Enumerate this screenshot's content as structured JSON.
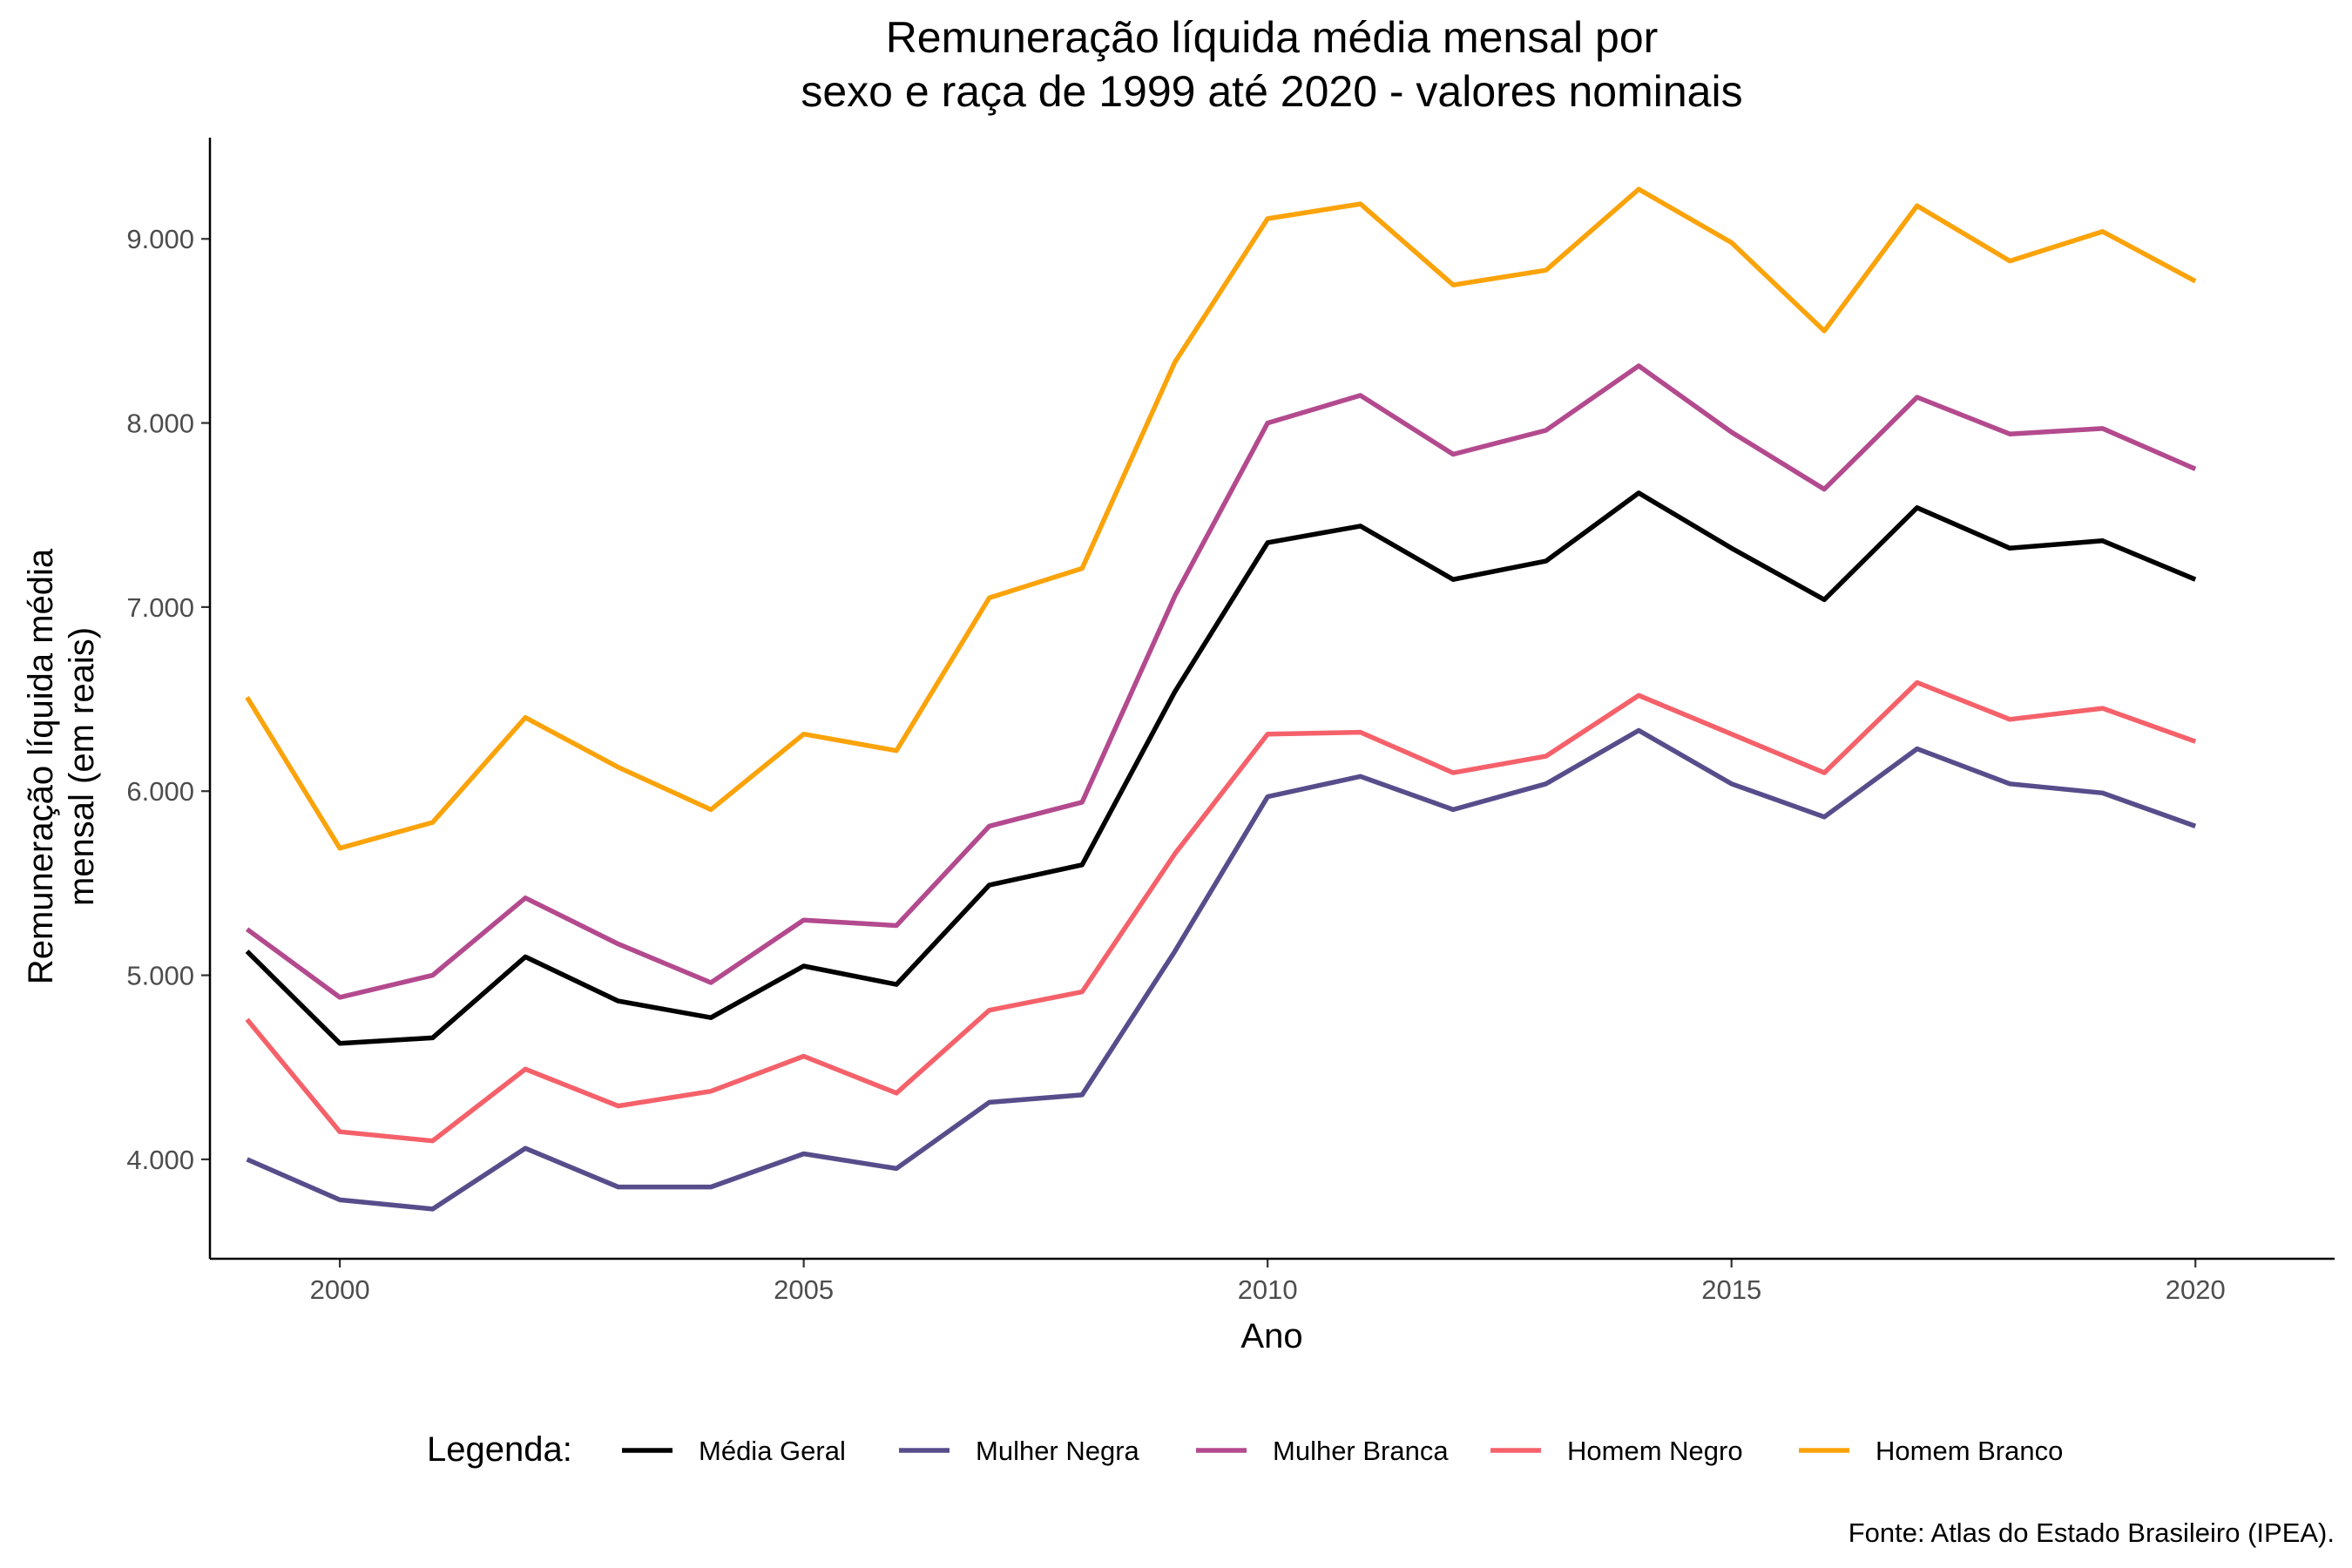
{
  "chart_data": {
    "type": "line",
    "title": [
      "Remuneração líquida média mensal por",
      "sexo e raça de 1999 até 2020 - valores nominais"
    ],
    "xlabel": "Ano",
    "ylabel": [
      "Remuneração líquida média",
      "mensal (em reais)"
    ],
    "xlim": [
      1998.6,
      2021.5
    ],
    "ylim": [
      3460,
      9550
    ],
    "x_ticks": [
      2000,
      2005,
      2010,
      2015,
      2020
    ],
    "x_tick_labels": [
      "2000",
      "2005",
      "2010",
      "2015",
      "2020"
    ],
    "y_ticks": [
      4000,
      5000,
      6000,
      7000,
      8000,
      9000
    ],
    "y_tick_labels": [
      "4.000",
      "5.000",
      "6.000",
      "7.000",
      "8.000",
      "9.000"
    ],
    "grid": false,
    "legend_title": "Legenda:",
    "legend_position": "bottom",
    "x": [
      1999,
      2000,
      2001,
      2002,
      2003,
      2004,
      2005,
      2006,
      2007,
      2008,
      2009,
      2010,
      2011,
      2012,
      2013,
      2014,
      2015,
      2016,
      2017,
      2018,
      2019,
      2020
    ],
    "series": [
      {
        "name": "Média Geral",
        "color": "#000000",
        "values": [
          5130,
          4630,
          4660,
          5100,
          4860,
          4770,
          5050,
          4950,
          5490,
          5600,
          6540,
          7350,
          7440,
          7150,
          7250,
          7620,
          7320,
          7040,
          7540,
          7320,
          7360,
          7150
        ]
      },
      {
        "name": "Mulher Negra",
        "color": "#574D8B",
        "values": [
          4000,
          3780,
          3730,
          4060,
          3850,
          3850,
          4030,
          3950,
          4310,
          4350,
          5130,
          5970,
          6080,
          5900,
          6040,
          6330,
          6040,
          5860,
          6230,
          6040,
          5990,
          5810
        ]
      },
      {
        "name": "Mulher Branca",
        "color": "#B34A8E",
        "values": [
          5250,
          4880,
          5000,
          5420,
          5170,
          4960,
          5300,
          5270,
          5810,
          5940,
          7060,
          8000,
          8150,
          7830,
          7960,
          8310,
          7950,
          7640,
          8140,
          7940,
          7970,
          7750
        ]
      },
      {
        "name": "Homem Negro",
        "color": "#F5616A",
        "values": [
          4760,
          4150,
          4100,
          4490,
          4290,
          4370,
          4560,
          4360,
          4810,
          4910,
          5660,
          6310,
          6320,
          6100,
          6190,
          6520,
          6310,
          6100,
          6590,
          6390,
          6450,
          6270
        ]
      },
      {
        "name": "Homem Branco",
        "color": "#FBA30A",
        "values": [
          6510,
          5690,
          5830,
          6400,
          6130,
          5900,
          6310,
          6220,
          7050,
          7210,
          8330,
          9110,
          9190,
          8750,
          8830,
          9270,
          8980,
          8500,
          9180,
          8880,
          9040,
          8770
        ]
      }
    ]
  },
  "caption": "Fonte: Atlas do Estado Brasileiro (IPEA)."
}
